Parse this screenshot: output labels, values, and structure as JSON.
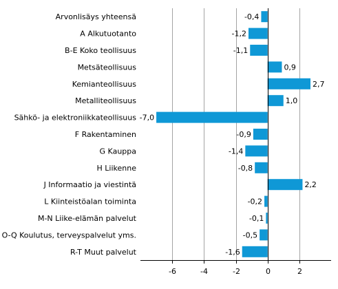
{
  "chart_data": {
    "type": "bar",
    "orientation": "horizontal",
    "categories": [
      "Arvonlisäys yhteensä",
      "A Alkutuotanto",
      "B-E Koko teollisuus",
      "Metsäteollisuus",
      "Kemianteollisuus",
      "Metalliteollisuus",
      "Sähkö- ja elektroniikkateollisuus",
      "F Rakentaminen",
      "G Kauppa",
      "H Liikenne",
      "J Informaatio ja viestintä",
      "L Kiinteistöalan toiminta",
      "M-N Liike-elämän palvelut",
      "O-Q Koulutus, terveyspalvelut yms.",
      "R-T Muut palvelut"
    ],
    "values": [
      -0.4,
      -1.2,
      -1.1,
      0.9,
      2.7,
      1.0,
      -7.0,
      -0.9,
      -1.4,
      -0.8,
      2.2,
      -0.2,
      -0.1,
      -0.5,
      -1.6
    ],
    "value_labels": [
      "-0,4",
      "-1,2",
      "-1,1",
      "0,9",
      "2,7",
      "1,0",
      "-7,0",
      "-0,9",
      "-1,4",
      "-0,8",
      "2,2",
      "-0,2",
      "-0,1",
      "-0,5",
      "-1,6"
    ],
    "xlim": [
      -8,
      4
    ],
    "xticks": [
      -6,
      -4,
      -2,
      0,
      2
    ],
    "xtick_labels": [
      "-6",
      "-4",
      "-2",
      "0",
      "2"
    ],
    "title": "",
    "xlabel": "",
    "ylabel": "",
    "grid": "vertical",
    "colors": {
      "bar": "#0f98d6",
      "grid": "#a3a3a3",
      "axis": "#000000"
    }
  }
}
